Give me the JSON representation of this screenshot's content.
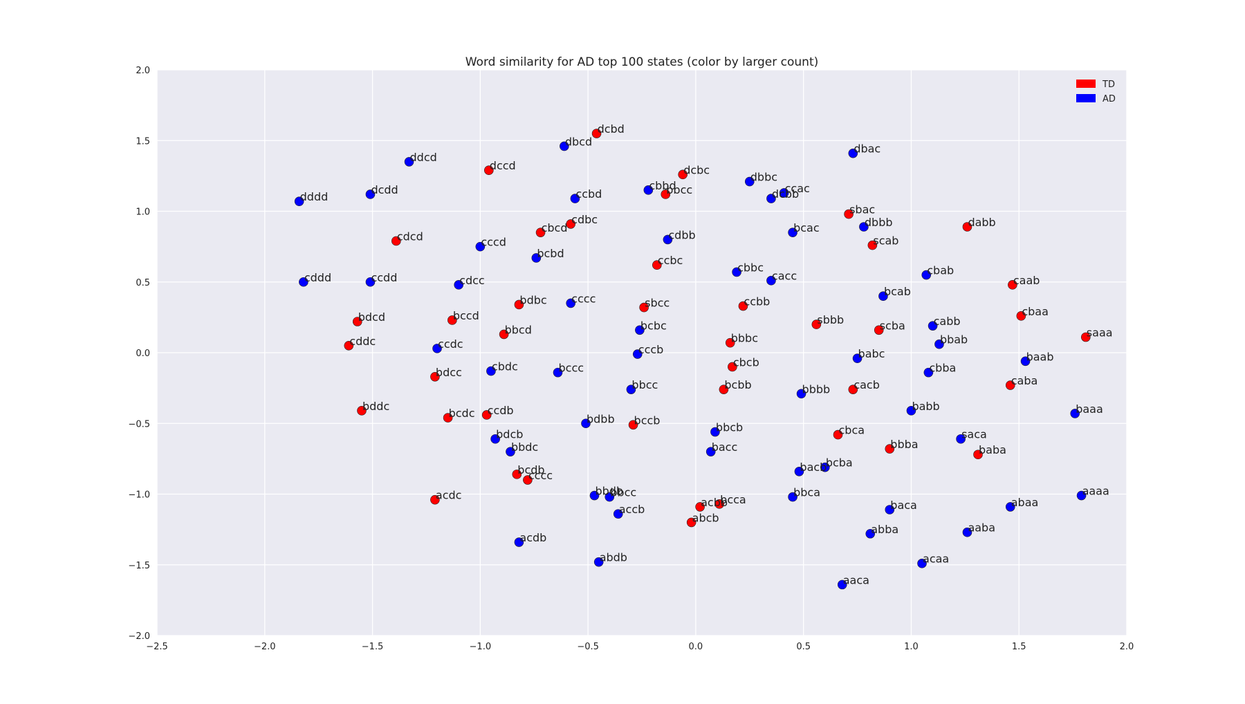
{
  "chart_data": {
    "type": "scatter",
    "title": "Word similarity for AD top 100 states (color by larger count)",
    "xlabel": "",
    "ylabel": "",
    "xlim": [
      -2.5,
      2.0
    ],
    "ylim": [
      -2.0,
      2.0
    ],
    "xticks": [
      "−2.5",
      "−2.0",
      "−1.5",
      "−1.0",
      "−0.5",
      "0.0",
      "0.5",
      "1.0",
      "1.5",
      "2.0"
    ],
    "yticks": [
      "−2.0",
      "−1.5",
      "−1.0",
      "−0.5",
      "0.0",
      "0.5",
      "1.0",
      "1.5",
      "2.0"
    ],
    "grid": true,
    "background": "#eaeaf2",
    "legend": {
      "placement": "top-right",
      "entries": [
        {
          "label": "TD",
          "color": "#ff0000"
        },
        {
          "label": "AD",
          "color": "#0000ff"
        }
      ]
    },
    "series": [
      {
        "name": "TD",
        "color": "#ff0000",
        "points": [
          {
            "label": "dcbd",
            "x": -0.46,
            "y": 1.55
          },
          {
            "label": "dccd",
            "x": -0.96,
            "y": 1.29
          },
          {
            "label": "dcbc",
            "x": -0.06,
            "y": 1.26
          },
          {
            "label": "bbcc",
            "x": -0.14,
            "y": 1.12
          },
          {
            "label": "cdcd",
            "x": -1.39,
            "y": 0.79
          },
          {
            "label": "cbcd",
            "x": -0.72,
            "y": 0.85
          },
          {
            "label": "cdbc",
            "x": -0.58,
            "y": 0.91
          },
          {
            "label": "sbac",
            "x": 0.71,
            "y": 0.98
          },
          {
            "label": "dabb",
            "x": 1.26,
            "y": 0.89
          },
          {
            "label": "scab",
            "x": 0.82,
            "y": 0.76
          },
          {
            "label": "ccbc",
            "x": -0.18,
            "y": 0.62
          },
          {
            "label": "caab",
            "x": 1.47,
            "y": 0.48
          },
          {
            "label": "bdbc",
            "x": -0.82,
            "y": 0.34
          },
          {
            "label": "sbcc",
            "x": -0.24,
            "y": 0.32
          },
          {
            "label": "ccbb",
            "x": 0.22,
            "y": 0.33
          },
          {
            "label": "cbaa",
            "x": 1.51,
            "y": 0.26
          },
          {
            "label": "bdcd",
            "x": -1.57,
            "y": 0.22
          },
          {
            "label": "bccd",
            "x": -1.13,
            "y": 0.23
          },
          {
            "label": "bbcd",
            "x": -0.89,
            "y": 0.13
          },
          {
            "label": "sbbb",
            "x": 0.56,
            "y": 0.2
          },
          {
            "label": "scba",
            "x": 0.85,
            "y": 0.16
          },
          {
            "label": "saaa",
            "x": 1.81,
            "y": 0.11
          },
          {
            "label": "cddc",
            "x": -1.61,
            "y": 0.05
          },
          {
            "label": "bbbc",
            "x": 0.16,
            "y": 0.07
          },
          {
            "label": "bdcc",
            "x": -1.21,
            "y": -0.17
          },
          {
            "label": "cbcb",
            "x": 0.17,
            "y": -0.1
          },
          {
            "label": "bcbb",
            "x": 0.13,
            "y": -0.26
          },
          {
            "label": "cacb",
            "x": 0.73,
            "y": -0.26
          },
          {
            "label": "caba",
            "x": 1.46,
            "y": -0.23
          },
          {
            "label": "bddc",
            "x": -1.55,
            "y": -0.41
          },
          {
            "label": "bcdc",
            "x": -1.15,
            "y": -0.46
          },
          {
            "label": "ccdb",
            "x": -0.97,
            "y": -0.44
          },
          {
            "label": "bccb",
            "x": -0.29,
            "y": -0.51
          },
          {
            "label": "cbca",
            "x": 0.66,
            "y": -0.58
          },
          {
            "label": "bbba",
            "x": 0.9,
            "y": -0.68
          },
          {
            "label": "baba",
            "x": 1.31,
            "y": -0.72
          },
          {
            "label": "bcdb",
            "x": -0.83,
            "y": -0.86
          },
          {
            "label": "cccc",
            "x": -0.78,
            "y": -0.9
          },
          {
            "label": "acdc",
            "x": -1.21,
            "y": -1.04
          },
          {
            "label": "acbb",
            "x": 0.02,
            "y": -1.09
          },
          {
            "label": "bcca",
            "x": 0.11,
            "y": -1.07
          },
          {
            "label": "abcb",
            "x": -0.02,
            "y": -1.2
          }
        ]
      },
      {
        "name": "AD",
        "color": "#0000ff",
        "points": [
          {
            "label": "dbcd",
            "x": -0.61,
            "y": 1.46
          },
          {
            "label": "ddcd",
            "x": -1.33,
            "y": 1.35
          },
          {
            "label": "dbac",
            "x": 0.73,
            "y": 1.41
          },
          {
            "label": "dddd",
            "x": -1.84,
            "y": 1.07
          },
          {
            "label": "dcdd",
            "x": -1.51,
            "y": 1.12
          },
          {
            "label": "ccbd",
            "x": -0.56,
            "y": 1.09
          },
          {
            "label": "cbbd",
            "x": -0.22,
            "y": 1.15
          },
          {
            "label": "dbbc",
            "x": 0.25,
            "y": 1.21
          },
          {
            "label": "dcbb",
            "x": 0.35,
            "y": 1.09
          },
          {
            "label": "ccac",
            "x": 0.41,
            "y": 1.13
          },
          {
            "label": "dbbb",
            "x": 0.78,
            "y": 0.89
          },
          {
            "label": "bcac",
            "x": 0.45,
            "y": 0.85
          },
          {
            "label": "cccd",
            "x": -1.0,
            "y": 0.75
          },
          {
            "label": "bcbd",
            "x": -0.74,
            "y": 0.67
          },
          {
            "label": "cdbb",
            "x": -0.13,
            "y": 0.8
          },
          {
            "label": "cbbc",
            "x": 0.19,
            "y": 0.57
          },
          {
            "label": "cacc",
            "x": 0.35,
            "y": 0.51
          },
          {
            "label": "cbab",
            "x": 1.07,
            "y": 0.55
          },
          {
            "label": "bcab",
            "x": 0.87,
            "y": 0.4
          },
          {
            "label": "cddd",
            "x": -1.82,
            "y": 0.5
          },
          {
            "label": "ccdd",
            "x": -1.51,
            "y": 0.5
          },
          {
            "label": "cdcc",
            "x": -1.1,
            "y": 0.48
          },
          {
            "label": "cccc",
            "x": -0.58,
            "y": 0.35
          },
          {
            "label": "bcbc",
            "x": -0.26,
            "y": 0.16
          },
          {
            "label": "cabb",
            "x": 1.1,
            "y": 0.19
          },
          {
            "label": "ccdc",
            "x": -1.2,
            "y": 0.03
          },
          {
            "label": "cccb",
            "x": -0.27,
            "y": -0.01
          },
          {
            "label": "babc",
            "x": 0.75,
            "y": -0.04
          },
          {
            "label": "bbab",
            "x": 1.13,
            "y": 0.06
          },
          {
            "label": "baab",
            "x": 1.53,
            "y": -0.06
          },
          {
            "label": "cbdc",
            "x": -0.95,
            "y": -0.13
          },
          {
            "label": "bccc",
            "x": -0.64,
            "y": -0.14
          },
          {
            "label": "cbba",
            "x": 1.08,
            "y": -0.14
          },
          {
            "label": "bbcc",
            "x": -0.3,
            "y": -0.26
          },
          {
            "label": "bbbb",
            "x": 0.49,
            "y": -0.29
          },
          {
            "label": "babb",
            "x": 1.0,
            "y": -0.41
          },
          {
            "label": "baaa",
            "x": 1.76,
            "y": -0.43
          },
          {
            "label": "bdbb",
            "x": -0.51,
            "y": -0.5
          },
          {
            "label": "bbcb",
            "x": 0.09,
            "y": -0.56
          },
          {
            "label": "bdcb",
            "x": -0.93,
            "y": -0.61
          },
          {
            "label": "bbdc",
            "x": -0.86,
            "y": -0.7
          },
          {
            "label": "bacc",
            "x": 0.07,
            "y": -0.7
          },
          {
            "label": "saca",
            "x": 1.23,
            "y": -0.61
          },
          {
            "label": "bacb",
            "x": 0.48,
            "y": -0.84
          },
          {
            "label": "bcba",
            "x": 0.6,
            "y": -0.81
          },
          {
            "label": "bbdb",
            "x": -0.47,
            "y": -1.01
          },
          {
            "label": "bbcc",
            "x": -0.4,
            "y": -1.02
          },
          {
            "label": "bbca",
            "x": 0.45,
            "y": -1.02
          },
          {
            "label": "baca",
            "x": 0.9,
            "y": -1.11
          },
          {
            "label": "abaa",
            "x": 1.46,
            "y": -1.09
          },
          {
            "label": "aaaa",
            "x": 1.79,
            "y": -1.01
          },
          {
            "label": "accb",
            "x": -0.36,
            "y": -1.14
          },
          {
            "label": "acdb",
            "x": -0.82,
            "y": -1.34
          },
          {
            "label": "abdb",
            "x": -0.45,
            "y": -1.48
          },
          {
            "label": "abba",
            "x": 0.81,
            "y": -1.28
          },
          {
            "label": "aaba",
            "x": 1.26,
            "y": -1.27
          },
          {
            "label": "acaa",
            "x": 1.05,
            "y": -1.49
          },
          {
            "label": "aaca",
            "x": 0.68,
            "y": -1.64
          }
        ]
      }
    ]
  }
}
